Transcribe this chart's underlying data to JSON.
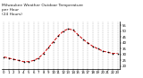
{
  "title": "Milwaukee Weather Outdoor Temperature\nper Hour\n(24 Hours)",
  "hours": [
    0,
    1,
    2,
    3,
    4,
    5,
    6,
    7,
    8,
    9,
    10,
    11,
    12,
    13,
    14,
    15,
    16,
    17,
    18,
    19,
    20,
    21,
    22,
    23
  ],
  "temps": [
    28,
    27,
    26,
    25,
    24,
    24,
    25,
    27,
    31,
    36,
    41,
    46,
    50,
    52,
    51,
    47,
    43,
    40,
    37,
    35,
    33,
    32,
    31,
    31
  ],
  "line_color": "#cc0000",
  "marker_color": "#000000",
  "grid_color": "#888888",
  "bg_color": "#ffffff",
  "title_fontsize": 3.2,
  "tick_fontsize": 2.8,
  "ylim": [
    18,
    58
  ],
  "xlim": [
    -0.5,
    23.5
  ],
  "yticks": [
    20,
    25,
    30,
    35,
    40,
    45,
    50,
    55
  ],
  "vgrid_hours": [
    0,
    1,
    2,
    3,
    4,
    5,
    6,
    7,
    8,
    9,
    10,
    11,
    12,
    13,
    14,
    15,
    16,
    17,
    18,
    19,
    20,
    21,
    22,
    23
  ]
}
